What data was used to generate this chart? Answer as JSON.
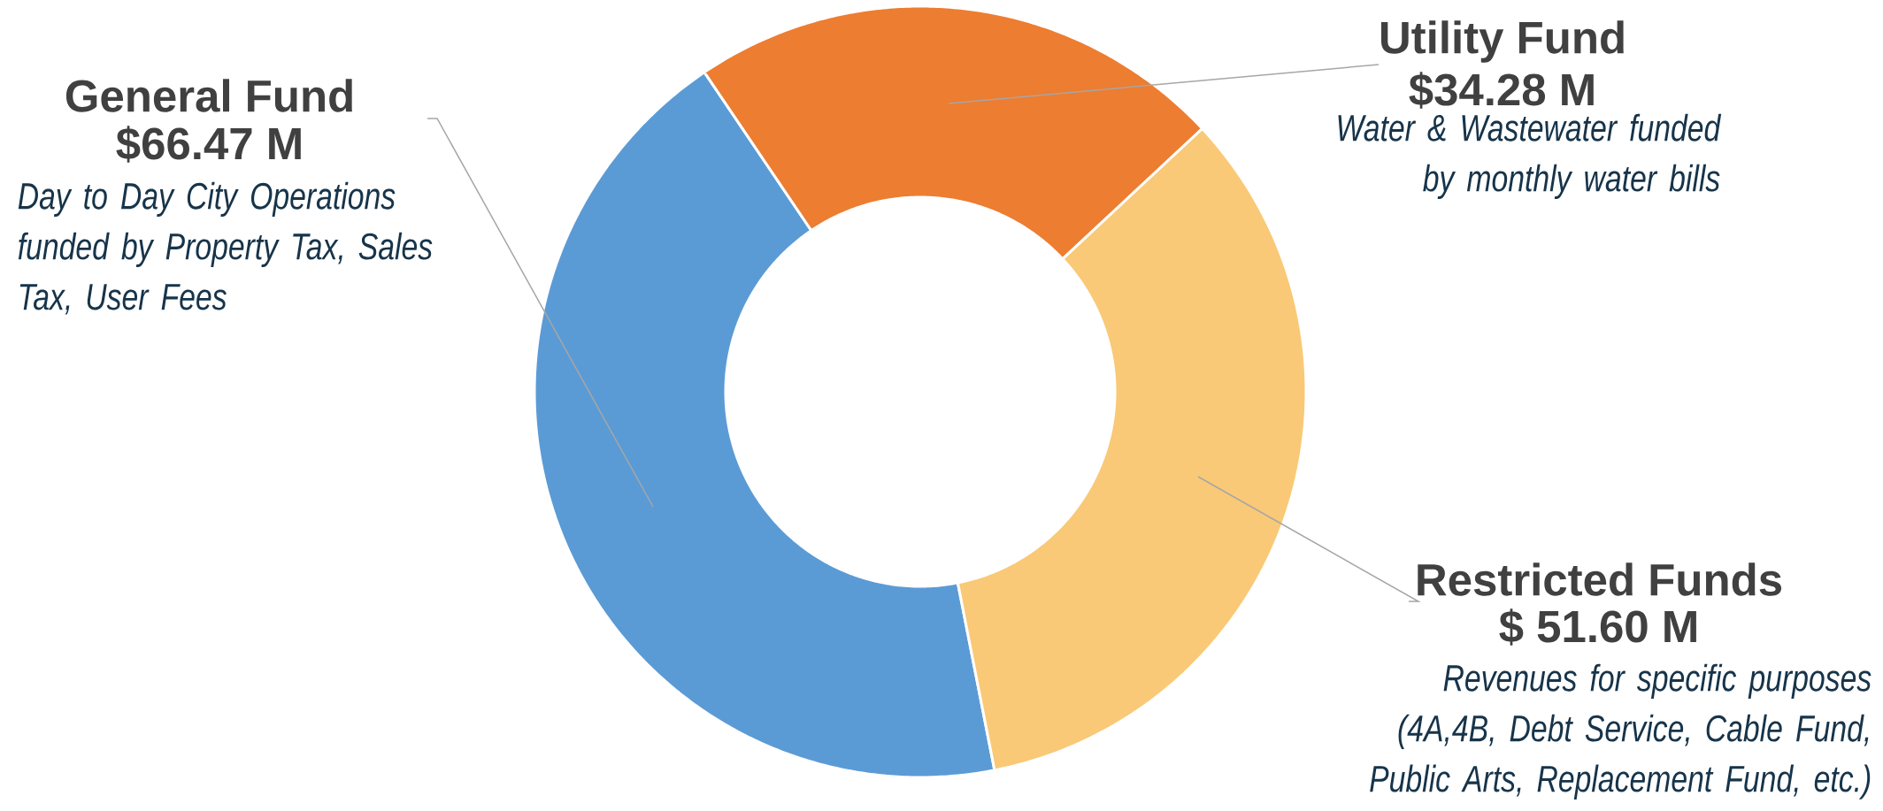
{
  "chart_data": {
    "type": "donut",
    "categories": [
      "General Fund",
      "Utility Fund",
      "Restricted Funds"
    ],
    "values": [
      66.47,
      34.28,
      51.6
    ],
    "colors": [
      "#5b9bd5",
      "#ed7d31",
      "#f9c977"
    ],
    "value_labels": [
      "$66.47 M",
      "$34.28 M",
      "$ 51.60 M"
    ],
    "annotations": [
      "Day to Day City Operations funded by Property Tax, Sales Tax, User Fees",
      "Water & Wastewater funded by monthly water bills",
      "Revenues for specific purposes (4A,4B, Debt Service, Cable Fund, Public Arts, Replacement Fund, etc.)"
    ]
  }
}
